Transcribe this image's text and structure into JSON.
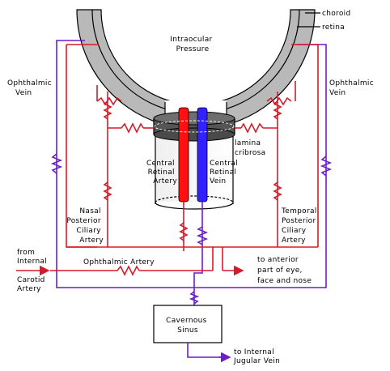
{
  "labels": {
    "choroid": "choroid",
    "retina": "retina",
    "intraocular_1": "Intraocular",
    "intraocular_2": "Pressure",
    "ophthalmic_vein_left_1": "Ophthalmic",
    "ophthalmic_vein_left_2": "Vein",
    "ophthalmic_vein_right_1": "Ophthalmic",
    "ophthalmic_vein_right_2": "Vein",
    "lamina_1": "lamina",
    "lamina_2": "cribrosa",
    "cra_1": "Central",
    "cra_2": "Retinal",
    "cra_3": "Artery",
    "crv_1": "Central",
    "crv_2": "Retinal",
    "crv_3": "Vein",
    "nasal_1": "Nasal",
    "nasal_2": "Posterior",
    "nasal_3": "Ciliary",
    "nasal_4": "Artery",
    "temporal_1": "Temporal",
    "temporal_2": "Posterior",
    "temporal_3": "Ciliary",
    "temporal_4": "Artery",
    "from_1": "from",
    "from_2": "Internal",
    "from_3": "Carotid",
    "from_4": "Artery",
    "ophthalmic_artery": "Ophthalmic Artery",
    "anterior_1": "to anterior",
    "anterior_2": "part of eye,",
    "anterior_3": "face and nose",
    "cavernous_1": "Cavernous",
    "cavernous_2": "Sinus",
    "jugular_1": "to Internal",
    "jugular_2": "Jugular Vein"
  },
  "colors": {
    "artery": "#d51b2b",
    "vein": "#6a1fc6",
    "sclera": "#b9b9b9",
    "lamina": "#555555"
  }
}
